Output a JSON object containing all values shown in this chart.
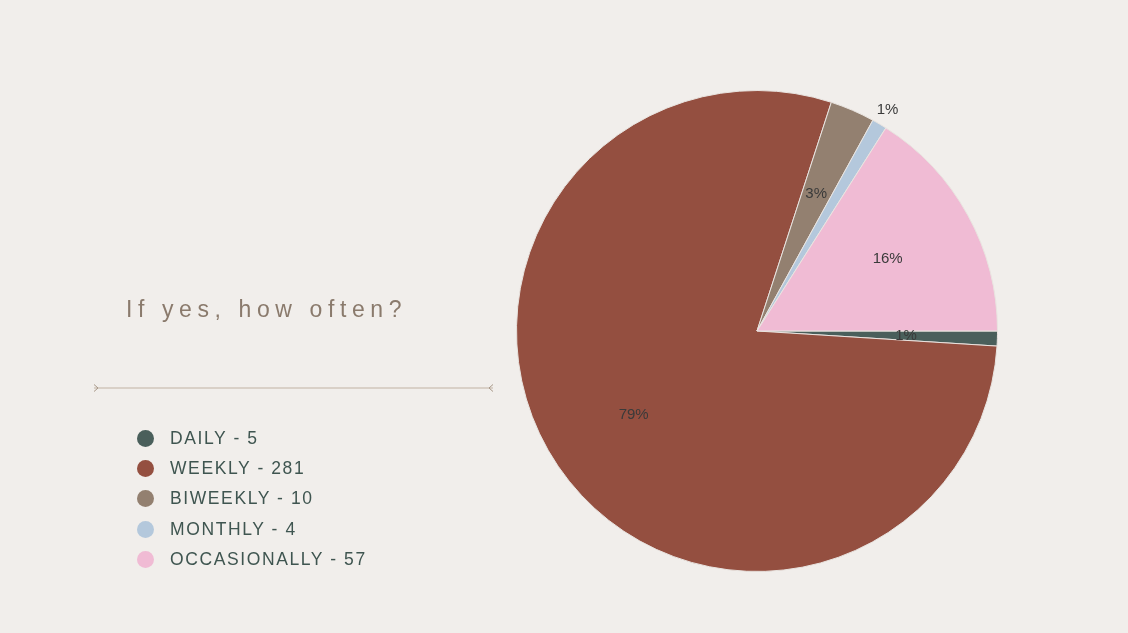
{
  "chart_data": {
    "type": "pie",
    "title": "If yes, how often?",
    "categories": [
      "DAILY - 5",
      "WEEKLY - 281",
      "BIWEEKLY - 10",
      "MONTHLY - 4",
      "OCCASIONALLY - 57"
    ],
    "values": [
      1,
      79,
      3,
      1,
      16
    ],
    "colors": [
      "#4a5f5b",
      "#944f40",
      "#938070",
      "#b4c8dc",
      "#f0bbd4"
    ],
    "value_labels": [
      "1%",
      "79%",
      "3%",
      "1%",
      "16%"
    ],
    "legend": "left"
  }
}
